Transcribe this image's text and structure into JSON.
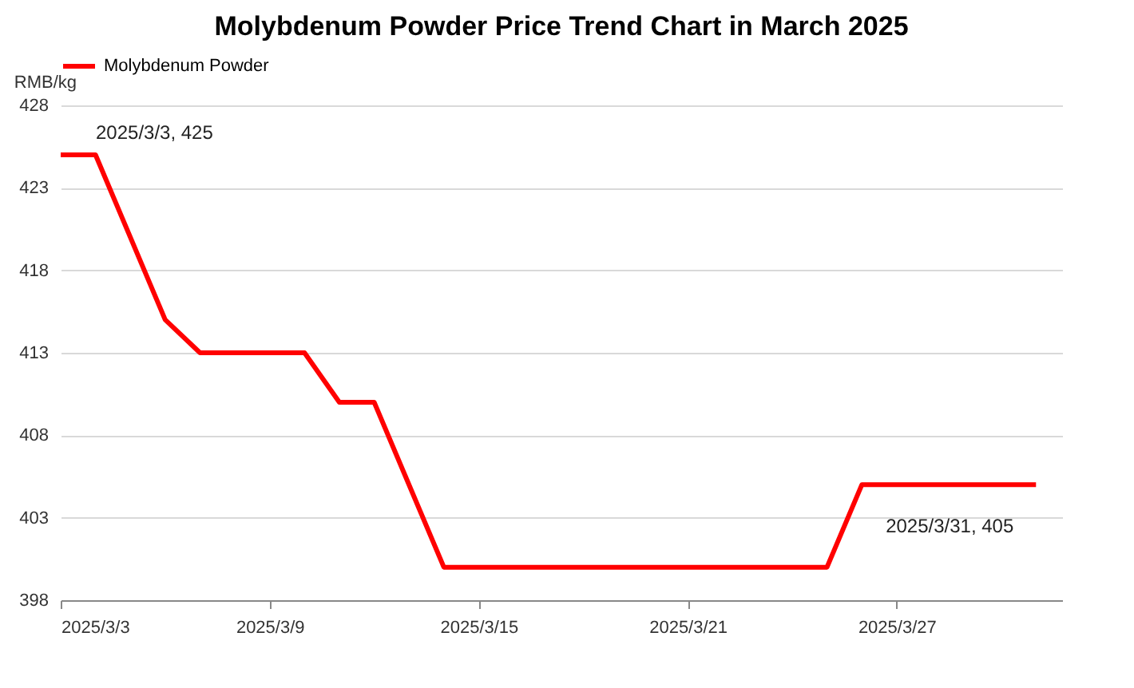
{
  "chart_data": {
    "type": "line",
    "title": "Molybdenum Powder Price Trend Chart in March 2025",
    "ylabel": "RMB/kg",
    "x": [
      "2025-03-03",
      "2025-03-04",
      "2025-03-06",
      "2025-03-07",
      "2025-03-10",
      "2025-03-11",
      "2025-03-12",
      "2025-03-14",
      "2025-03-25",
      "2025-03-26",
      "2025-03-31"
    ],
    "series": [
      {
        "name": "Molybdenum Powder",
        "color": "#ff0000",
        "values": [
          425,
          425,
          415,
          413,
          413,
          410,
          410,
          400,
          400,
          405,
          405
        ]
      }
    ],
    "xlim": [
      "2025-03-03",
      "2025-03-31T18:00"
    ],
    "xticks": [
      {
        "value": "2025-03-03",
        "label": "2025/3/3"
      },
      {
        "value": "2025-03-09",
        "label": "2025/3/9"
      },
      {
        "value": "2025-03-15",
        "label": "2025/3/15"
      },
      {
        "value": "2025-03-21",
        "label": "2025/3/21"
      },
      {
        "value": "2025-03-27",
        "label": "2025/3/27"
      }
    ],
    "ylim": [
      398,
      428
    ],
    "yticks": [
      398,
      403,
      408,
      413,
      418,
      423,
      428
    ],
    "grid": "y",
    "legend": "top",
    "marker": "none",
    "line_style": "solid",
    "annotations": [
      {
        "text": "2025/3/3, 425",
        "x": "2025-03-03",
        "y": 425
      },
      {
        "text": "2025/3/31, 405",
        "x": "2025-03-31",
        "y": 405
      }
    ]
  }
}
